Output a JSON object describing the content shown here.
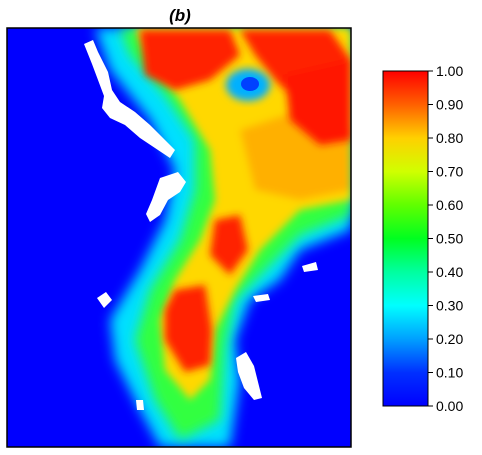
{
  "chart_data": {
    "type": "heatmap",
    "title": "(b)",
    "colorbar": {
      "range": [
        0,
        1
      ],
      "tick_labels": [
        "0.00",
        "0.10",
        "0.20",
        "0.30",
        "0.40",
        "0.50",
        "0.60",
        "0.70",
        "0.80",
        "0.90",
        "1.00"
      ],
      "colormap": "rainbow (blue-cyan-green-yellow-red)"
    },
    "legend_placement": "right",
    "grid": false,
    "colors": {
      "background": "#0000ff",
      "no_data": "#ffffff",
      "frame": "#000000"
    }
  }
}
